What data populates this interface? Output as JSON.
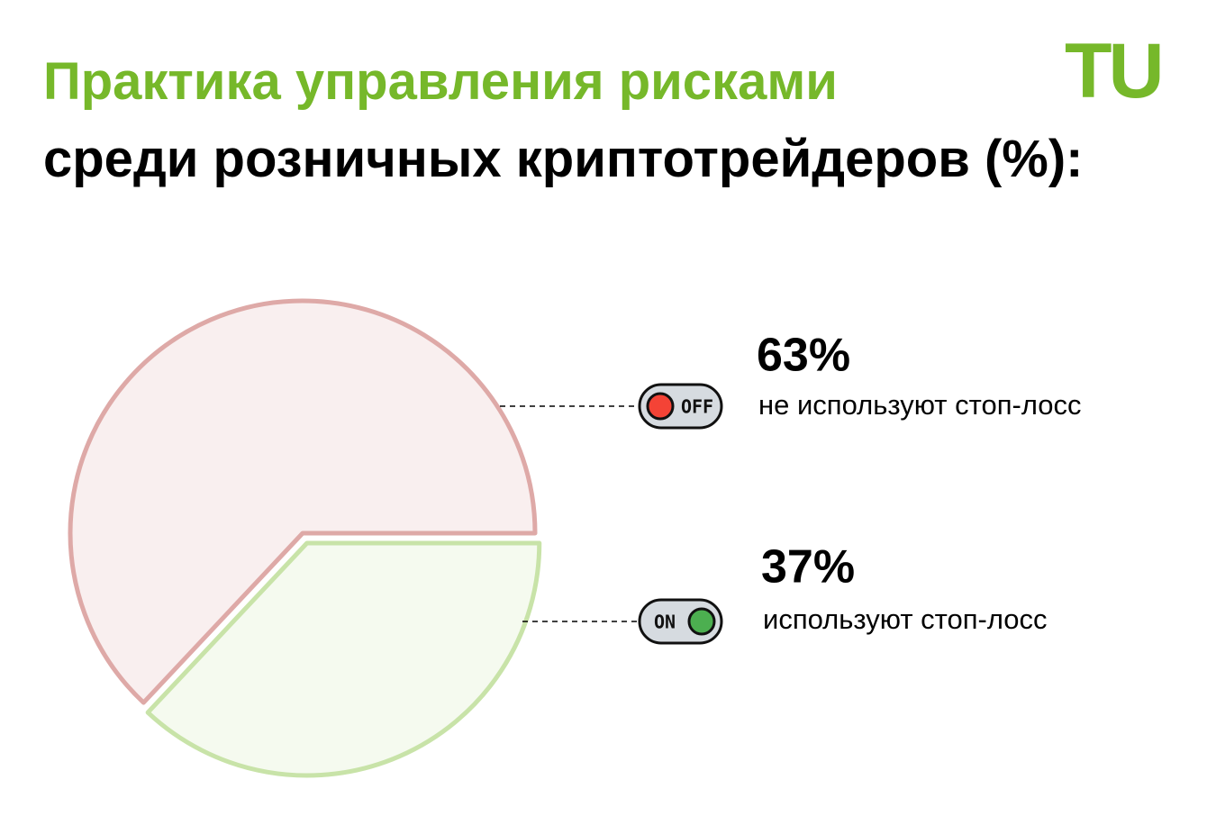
{
  "chart_data": {
    "type": "pie",
    "title": "Практика управления рисками",
    "subtitle": "среди розничных криптотрейдеров (%):",
    "logo": "TU",
    "categories": [
      "не используют стоп-лосс",
      "используют стоп-лосс"
    ],
    "values": [
      63,
      37
    ],
    "value_labels": [
      "63%",
      "37%"
    ],
    "switch_labels": [
      "OFF",
      "ON"
    ],
    "colors": [
      "#dea9a7",
      "#c8e3a8"
    ]
  }
}
